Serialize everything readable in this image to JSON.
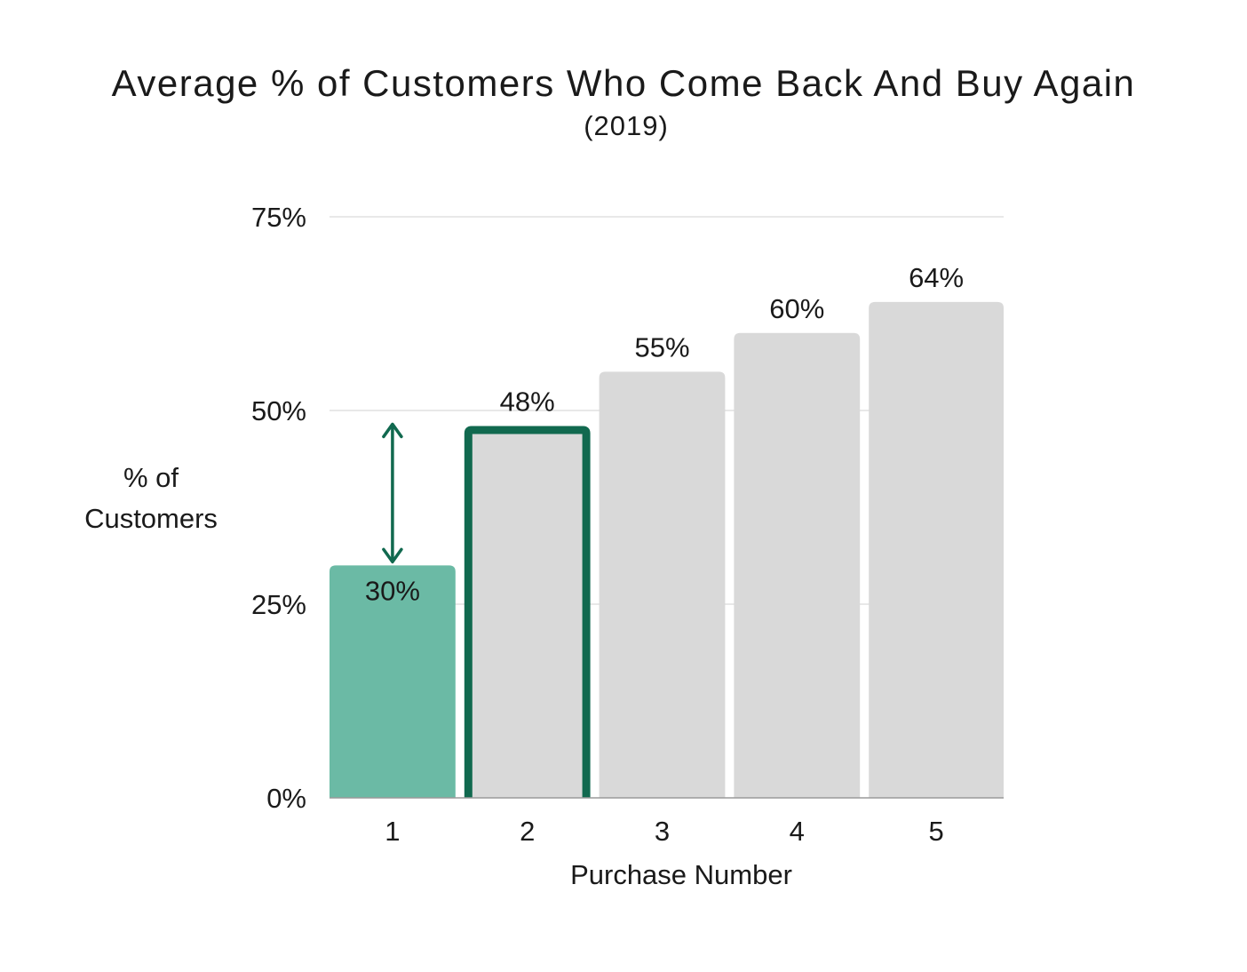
{
  "chart_data": {
    "type": "bar",
    "title": "Average % of Customers Who Come Back And Buy Again",
    "subtitle": "(2019)",
    "xlabel": "Purchase Number",
    "ylabel_lines": [
      "% of",
      "Customers"
    ],
    "categories": [
      "1",
      "2",
      "3",
      "4",
      "5"
    ],
    "values": [
      30,
      48,
      55,
      60,
      64
    ],
    "value_labels": [
      "30%",
      "48%",
      "55%",
      "60%",
      "64%"
    ],
    "ylim": [
      0,
      75
    ],
    "yticks": [
      0,
      25,
      50,
      75
    ],
    "ytick_labels": [
      "0%",
      "25%",
      "50%",
      "75%"
    ],
    "grid": true,
    "highlight": {
      "first_bar_color": "#6bbaa5",
      "outlined_bar_index": 1,
      "outline_color": "#11694f",
      "arrow_color": "#11694f",
      "arrow_between": [
        30,
        48
      ]
    },
    "colors": {
      "bar": "#d9d9d9",
      "grid": "#d9d9d9"
    }
  }
}
